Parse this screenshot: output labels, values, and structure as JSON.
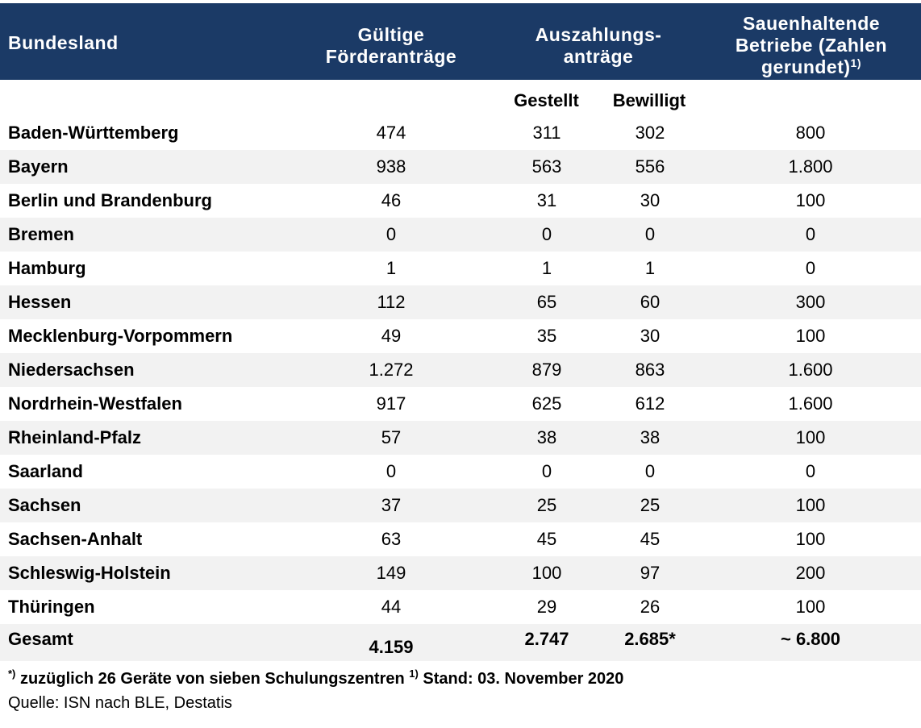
{
  "header": {
    "col0": "Bundesland",
    "col1_l1": "Gültige",
    "col1_l2": "Förderanträge",
    "col2_l1": "Auszahlungs-",
    "col2_l2": "anträge",
    "col3_l1": "Sauenhaltende",
    "col3_l2": "Betriebe (Zahlen",
    "col3_l3": "gerundet)",
    "col3_sup": "1)"
  },
  "subheader": {
    "gestellt": "Gestellt",
    "bewilligt": "Bewilligt"
  },
  "rows": [
    {
      "land": "Baden-Württemberg",
      "foerder": "474",
      "gestellt": "311",
      "bewilligt": "302",
      "betriebe": "800"
    },
    {
      "land": "Bayern",
      "foerder": "938",
      "gestellt": "563",
      "bewilligt": "556",
      "betriebe": "1.800"
    },
    {
      "land": "Berlin und Brandenburg",
      "foerder": "46",
      "gestellt": "31",
      "bewilligt": "30",
      "betriebe": "100"
    },
    {
      "land": "Bremen",
      "foerder": "0",
      "gestellt": "0",
      "bewilligt": "0",
      "betriebe": "0"
    },
    {
      "land": "Hamburg",
      "foerder": "1",
      "gestellt": "1",
      "bewilligt": "1",
      "betriebe": "0"
    },
    {
      "land": "Hessen",
      "foerder": "112",
      "gestellt": "65",
      "bewilligt": "60",
      "betriebe": "300"
    },
    {
      "land": "Mecklenburg-Vorpommern",
      "foerder": "49",
      "gestellt": "35",
      "bewilligt": "30",
      "betriebe": "100"
    },
    {
      "land": "Niedersachsen",
      "foerder": "1.272",
      "gestellt": "879",
      "bewilligt": "863",
      "betriebe": "1.600"
    },
    {
      "land": "Nordrhein-Westfalen",
      "foerder": "917",
      "gestellt": "625",
      "bewilligt": "612",
      "betriebe": "1.600"
    },
    {
      "land": "Rheinland-Pfalz",
      "foerder": "57",
      "gestellt": "38",
      "bewilligt": "38",
      "betriebe": "100"
    },
    {
      "land": "Saarland",
      "foerder": "0",
      "gestellt": "0",
      "bewilligt": "0",
      "betriebe": "0"
    },
    {
      "land": "Sachsen",
      "foerder": "37",
      "gestellt": "25",
      "bewilligt": "25",
      "betriebe": "100"
    },
    {
      "land": "Sachsen-Anhalt",
      "foerder": "63",
      "gestellt": "45",
      "bewilligt": "45",
      "betriebe": "100"
    },
    {
      "land": "Schleswig-Holstein",
      "foerder": "149",
      "gestellt": "100",
      "bewilligt": "97",
      "betriebe": "200"
    },
    {
      "land": "Thüringen",
      "foerder": "44",
      "gestellt": "29",
      "bewilligt": "26",
      "betriebe": "100"
    }
  ],
  "total": {
    "land": "Gesamt",
    "foerder": "4.159",
    "gestellt": "2.747",
    "bewilligt": "2.685*",
    "betriebe": "~ 6.800"
  },
  "footnote": {
    "sup1": "*)",
    "text1": " zuzüglich 26 Geräte von sieben Schulungszentren ",
    "sup2": "1)",
    "text2": " Stand: 03. November 2020",
    "source": "Quelle: ISN nach BLE, Destatis"
  },
  "colors": {
    "header_bg": "#1b3a66",
    "row_shade": "#f2f2f2"
  }
}
